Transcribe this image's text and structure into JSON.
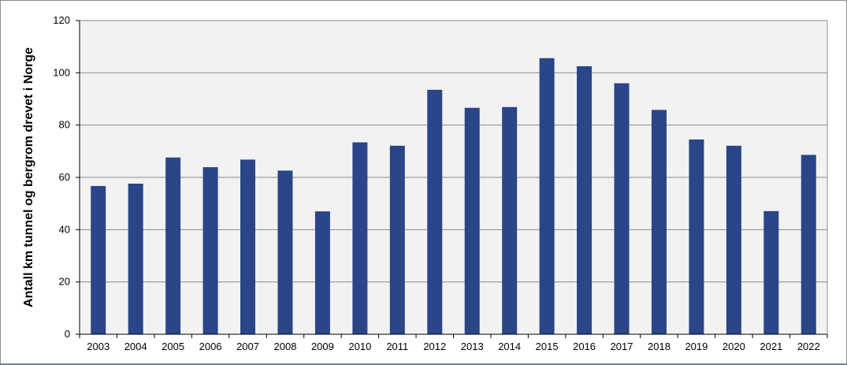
{
  "chart_data": {
    "type": "bar",
    "title": "",
    "xlabel": "",
    "ylabel": "Antall km tunnel og bergrom drevet i Norge",
    "categories": [
      "2003",
      "2004",
      "2005",
      "2006",
      "2007",
      "2008",
      "2009",
      "2010",
      "2011",
      "2012",
      "2013",
      "2014",
      "2015",
      "2016",
      "2017",
      "2018",
      "2019",
      "2020",
      "2021",
      "2022"
    ],
    "series": [
      {
        "values": [
          56.7,
          57.6,
          67.6,
          63.9,
          66.8,
          62.6,
          47.0,
          73.4,
          72.1,
          93.5,
          86.6,
          86.9,
          105.6,
          102.5,
          96.0,
          85.8,
          74.5,
          72.1,
          47.1,
          68.6
        ]
      }
    ],
    "ylim": [
      0,
      120
    ],
    "yticks": [
      0,
      20,
      40,
      60,
      80,
      100,
      120
    ],
    "grid": "horizontal",
    "legend": "none",
    "colors": {
      "bar": "#2a4588",
      "plot_background": "#f2f2f2",
      "gridline": "#8c8c8c"
    }
  }
}
